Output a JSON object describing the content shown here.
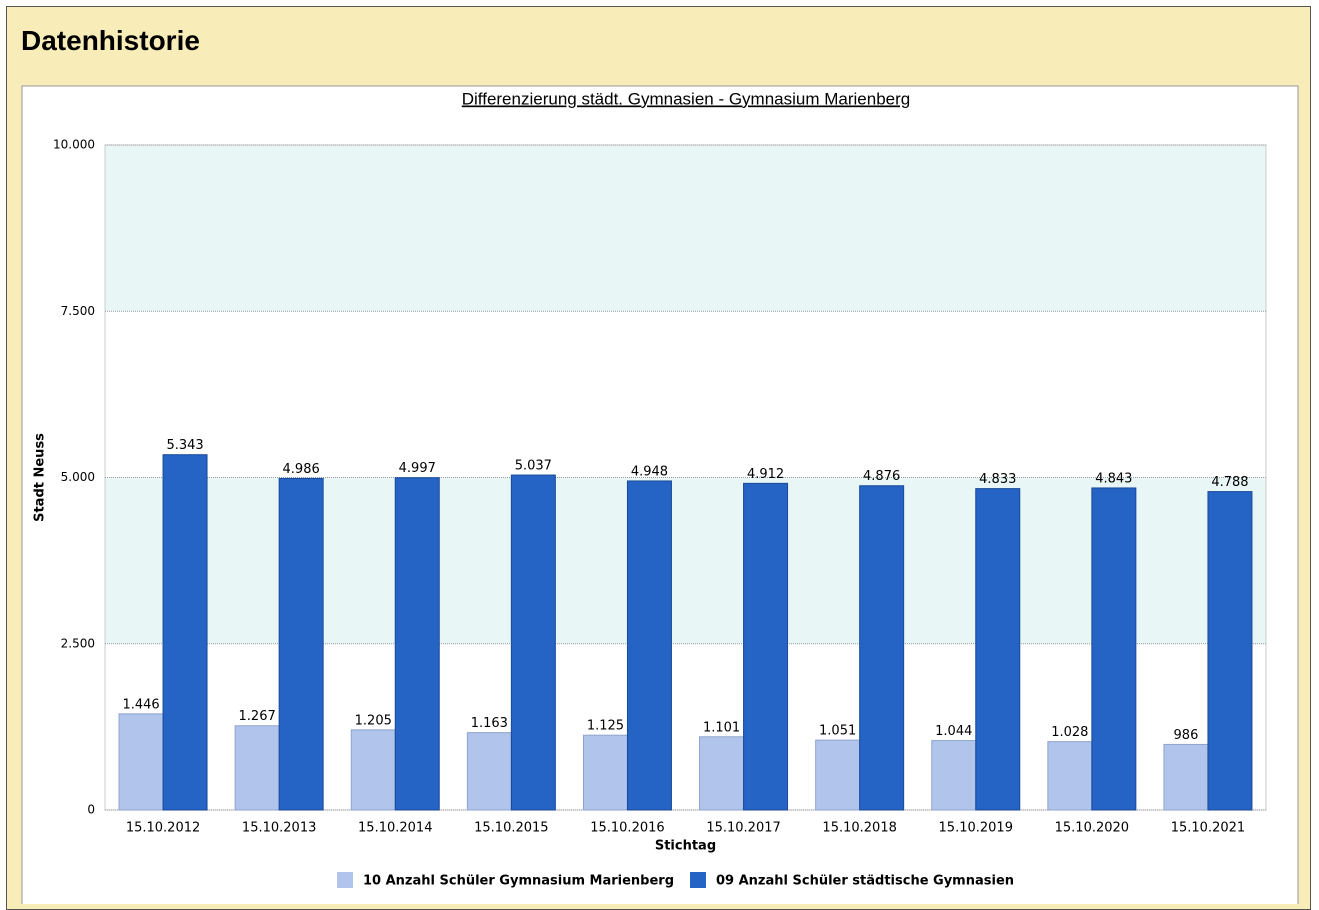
{
  "header": {
    "title": "Datenhistorie"
  },
  "chart_data": {
    "type": "bar",
    "title": "Differenzierung städt. Gymnasien - Gymnasium Marienberg",
    "x_label": "Stichtag",
    "y_label": "Stadt Neuss",
    "categories": [
      "15.10.2012",
      "15.10.2013",
      "15.10.2014",
      "15.10.2015",
      "15.10.2016",
      "15.10.2017",
      "15.10.2018",
      "15.10.2019",
      "15.10.2020",
      "15.10.2021"
    ],
    "series": [
      {
        "name": "10 Anzahl Schüler Gymnasium Marienberg",
        "color": "#b0c4ec",
        "values": [
          1446,
          1267,
          1205,
          1163,
          1125,
          1101,
          1051,
          1044,
          1028,
          986
        ],
        "value_labels": [
          "1.446",
          "1.267",
          "1.205",
          "1.163",
          "1.125",
          "1.101",
          "1.051",
          "1.044",
          "1.028",
          "986"
        ]
      },
      {
        "name": "09 Anzahl Schüler städtische Gymnasien",
        "color": "#2563c4",
        "values": [
          5343,
          4986,
          4997,
          5037,
          4948,
          4912,
          4876,
          4833,
          4843,
          4788
        ],
        "value_labels": [
          "5.343",
          "4.986",
          "4.997",
          "5.037",
          "4.948",
          "4.912",
          "4.876",
          "4.833",
          "4.843",
          "4.788"
        ]
      }
    ],
    "ylim": [
      0,
      10000
    ],
    "yticks": [
      0,
      {
        "value": 2500,
        "label": "2.500"
      },
      {
        "value": 5000,
        "label": "5.000"
      },
      {
        "value": 7500,
        "label": "7.500"
      },
      {
        "value": 10000,
        "label": "10.000"
      }
    ],
    "grid": true,
    "legend": "bottom"
  }
}
